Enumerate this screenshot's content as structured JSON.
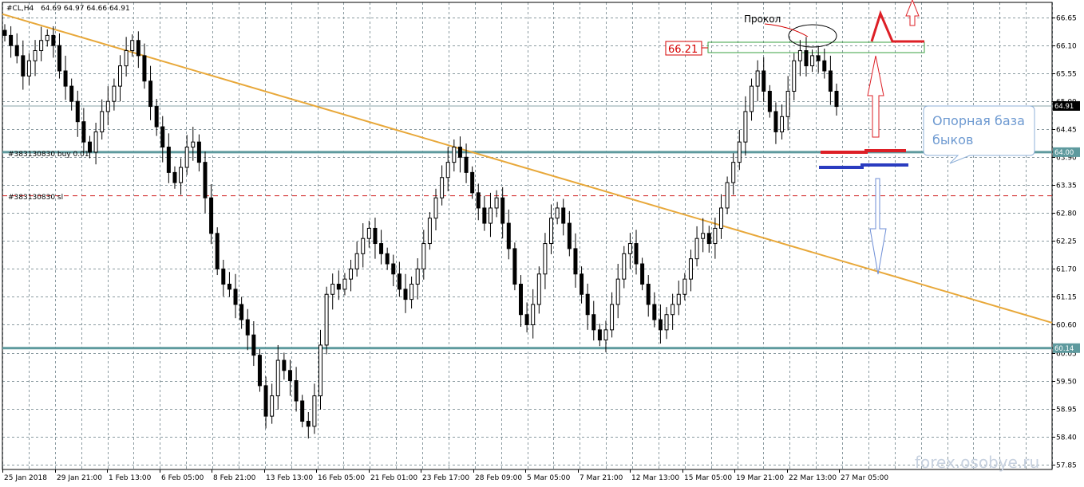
{
  "chart_data": {
    "type": "candlestick",
    "header": {
      "symbol": "#CL,H4",
      "ohlc": "64.69 64.97 64.66 64.91"
    },
    "y_ticks": [
      "66.65",
      "66.10",
      "65.55",
      "65.00",
      "64.45",
      "63.90",
      "63.35",
      "62.80",
      "62.25",
      "61.70",
      "61.15",
      "60.60",
      "60.05",
      "59.50",
      "58.95",
      "58.40",
      "57.85"
    ],
    "x_ticks": [
      "25 Jan 2018",
      "29 Jan 21:00",
      "1 Feb 13:00",
      "6 Feb 05:00",
      "8 Feb 21:00",
      "13 Feb 13:00",
      "16 Feb 05:00",
      "21 Feb 01:00",
      "23 Feb 17:00",
      "28 Feb 09:00",
      "5 Mar 05:00",
      "7 Mar 21:00",
      "12 Mar 13:00",
      "15 Mar 05:00",
      "19 Mar 21:00",
      "22 Mar 13:00",
      "27 Mar 05:00"
    ],
    "ylim": [
      57.75,
      66.95
    ],
    "current_price": "64.91",
    "levels": {
      "support_high": {
        "value": 64.0,
        "badge": "64.00"
      },
      "support_low": {
        "value": 60.14,
        "badge": "60.14"
      },
      "order_label": "#383130830 buy 0.01",
      "order_value": 64.0,
      "sl_label": "#383130830 sl",
      "sl_value": 63.14,
      "price_line": 64.91
    },
    "trendline": {
      "from": [
        0,
        66.72
      ],
      "to": [
        1,
        60.64
      ]
    },
    "annotations": {
      "pierce_label": "Прокол",
      "level_box_value": "66.21",
      "bubble_line1": "Опорная база",
      "bubble_line2": "быков",
      "watermark": "forex.osobye.ru"
    },
    "closes": [
      66.3,
      66.1,
      65.9,
      65.5,
      65.8,
      66.0,
      66.2,
      66.3,
      66.1,
      65.6,
      65.3,
      65.0,
      64.6,
      64.2,
      64.0,
      64.4,
      64.8,
      65.0,
      65.3,
      65.7,
      66.0,
      66.2,
      65.9,
      65.4,
      64.9,
      64.5,
      64.1,
      63.6,
      63.4,
      63.7,
      64.1,
      64.2,
      63.8,
      63.1,
      62.4,
      61.7,
      61.4,
      61.3,
      61.0,
      60.7,
      60.4,
      60.0,
      59.4,
      58.8,
      59.2,
      59.9,
      59.7,
      59.5,
      59.1,
      58.7,
      58.6,
      59.2,
      60.2,
      61.2,
      61.4,
      61.3,
      61.5,
      61.7,
      62.0,
      62.3,
      62.5,
      62.2,
      62.0,
      61.8,
      61.6,
      61.3,
      61.1,
      61.4,
      61.7,
      62.2,
      62.7,
      63.1,
      63.5,
      63.8,
      64.1,
      63.9,
      63.6,
      63.2,
      62.9,
      62.6,
      62.9,
      63.1,
      62.6,
      62.1,
      61.4,
      60.8,
      60.6,
      61.0,
      61.6,
      62.2,
      62.7,
      62.9,
      62.6,
      62.1,
      61.6,
      61.2,
      60.8,
      60.5,
      60.3,
      60.5,
      61.0,
      61.5,
      62.0,
      62.2,
      61.8,
      61.4,
      61.0,
      60.7,
      60.5,
      60.8,
      61.0,
      61.2,
      61.5,
      61.9,
      62.3,
      62.4,
      62.2,
      62.5,
      62.9,
      63.4,
      63.8,
      64.2,
      64.8,
      65.3,
      65.6,
      65.2,
      64.8,
      64.4,
      64.7,
      65.2,
      65.8,
      66.0,
      65.7,
      65.9,
      65.8,
      65.6,
      65.2,
      64.9
    ]
  }
}
